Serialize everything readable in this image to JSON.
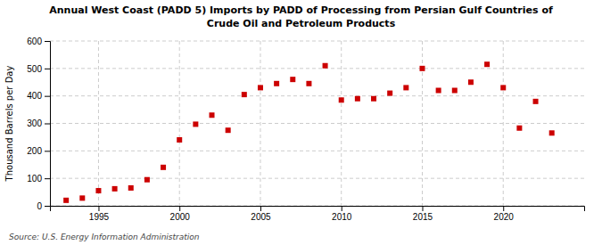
{
  "chart_data": {
    "type": "scatter",
    "title": "Annual West Coast (PADD 5) Imports by PADD of Processing from Persian Gulf Countries of",
    "subtitle": "Crude Oil and Petroleum Products",
    "ylabel": "Thousand Barrels per Day",
    "annotations": [
      "Source: U.S. Energy Information Administration"
    ],
    "x": [
      1993,
      1994,
      1995,
      1996,
      1997,
      1998,
      1999,
      2000,
      2001,
      2002,
      2003,
      2004,
      2005,
      2006,
      2007,
      2008,
      2009,
      2010,
      2011,
      2012,
      2013,
      2014,
      2015,
      2016,
      2017,
      2018,
      2019,
      2020,
      2021,
      2022,
      2023
    ],
    "values": [
      20,
      28,
      55,
      62,
      65,
      95,
      140,
      240,
      297,
      330,
      275,
      405,
      430,
      445,
      460,
      445,
      510,
      385,
      390,
      390,
      410,
      430,
      500,
      420,
      420,
      450,
      515,
      430,
      283,
      380,
      265
    ],
    "color": "#cc0000",
    "marker": "square",
    "xlim": [
      1992,
      2025
    ],
    "ylim": [
      0,
      600
    ],
    "xticks": [
      1995,
      2000,
      2005,
      2010,
      2015,
      2020
    ],
    "yticks": [
      0,
      100,
      200,
      300,
      400,
      500,
      600
    ],
    "grid": true
  }
}
